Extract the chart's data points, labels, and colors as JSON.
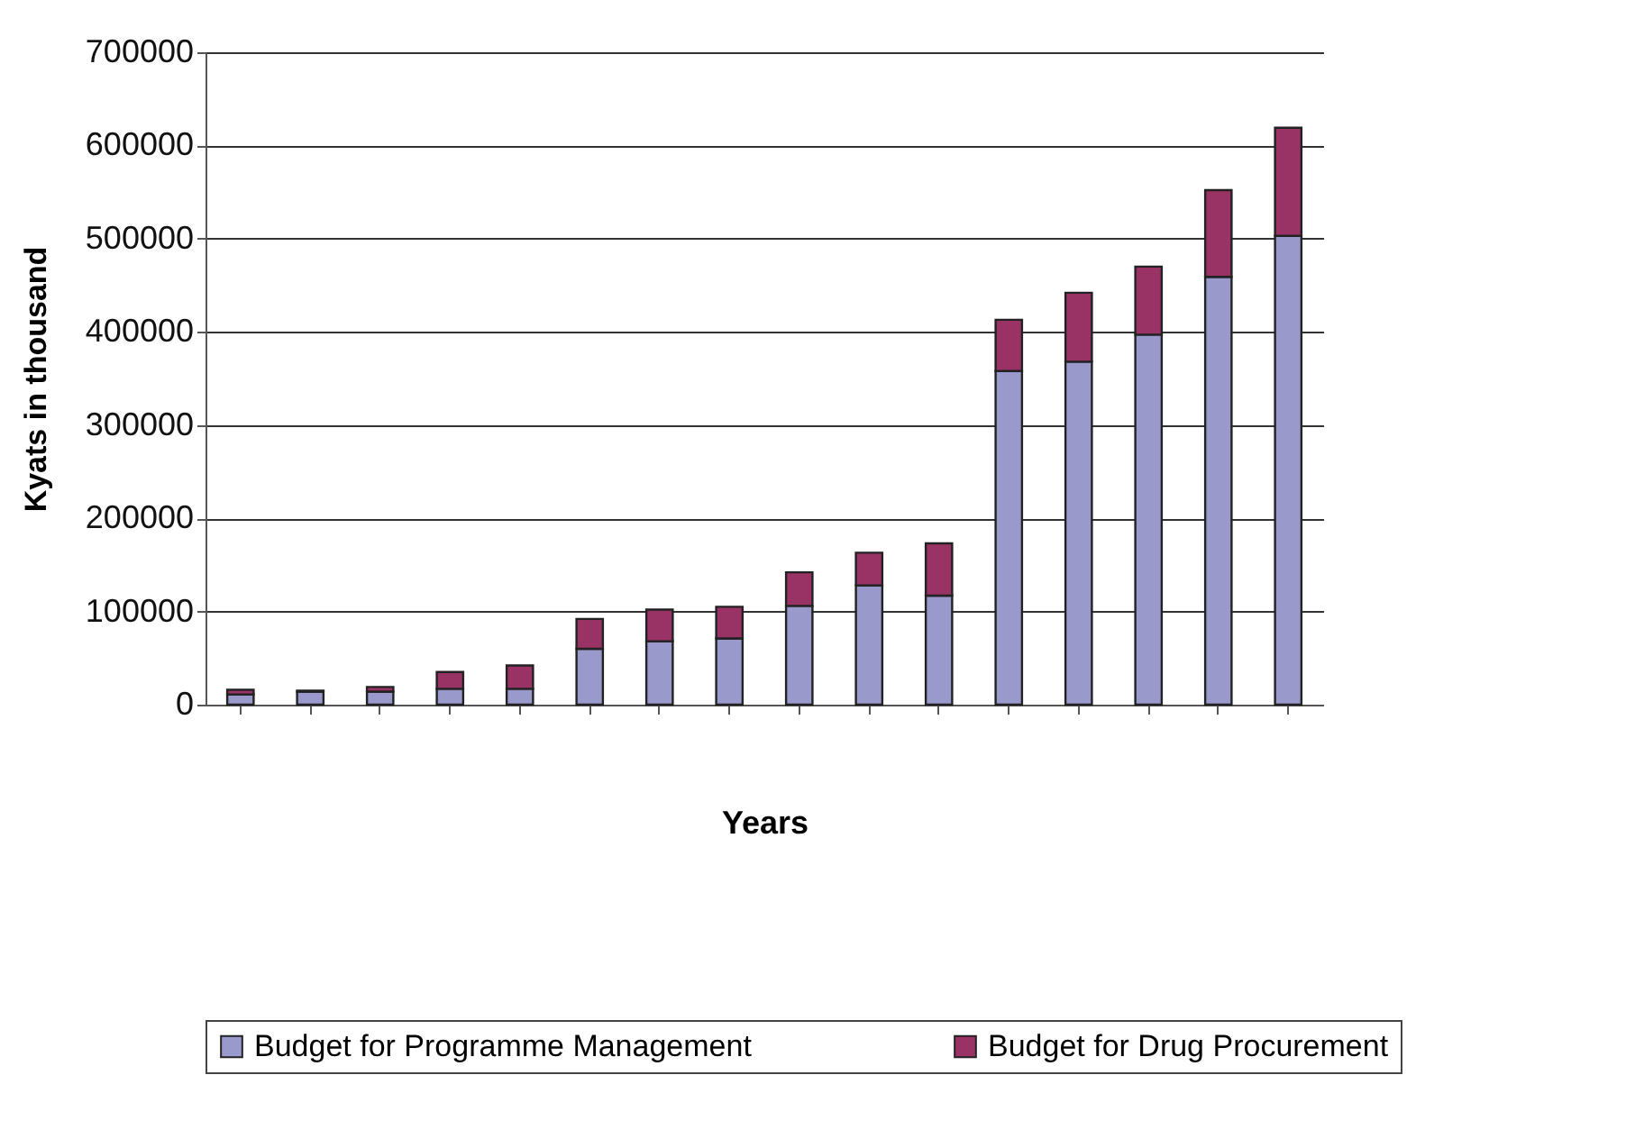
{
  "chart_data": {
    "type": "bar",
    "stacked": true,
    "xlabel": "Years",
    "ylabel": "Kyats in thousand",
    "categories": [
      null,
      null,
      null,
      null,
      null,
      null,
      null,
      null,
      null,
      null,
      null,
      null,
      null,
      null,
      null,
      null
    ],
    "series": [
      {
        "name": "Budget for Programme Management",
        "color": "#9999cc",
        "values": [
          11000,
          14000,
          14000,
          17000,
          17000,
          60000,
          68000,
          71000,
          106000,
          128000,
          117000,
          358000,
          368000,
          397000,
          459000,
          503000
        ]
      },
      {
        "name": "Budget for Drug Procurement",
        "color": "#993366",
        "values": [
          5000,
          1000,
          5000,
          18000,
          25000,
          32000,
          34000,
          34000,
          36000,
          35000,
          56000,
          55000,
          74000,
          73000,
          93000,
          116000
        ]
      }
    ],
    "ylim": [
      0,
      700000
    ],
    "yticks": [
      0,
      100000,
      200000,
      300000,
      400000,
      500000,
      600000,
      700000
    ],
    "grid": "y",
    "legend": "bottom"
  }
}
